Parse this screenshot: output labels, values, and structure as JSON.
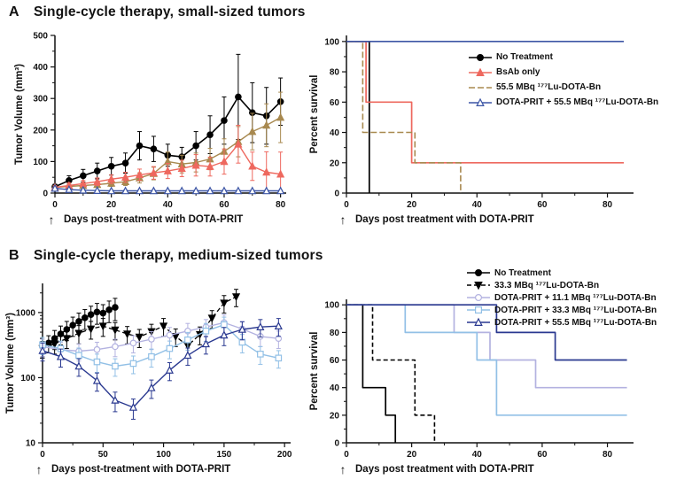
{
  "panels": {
    "a": {
      "label": "A",
      "title": "Single-cycle therapy, small-sized tumors"
    },
    "b": {
      "label": "B",
      "title": "Single-cycle therapy, medium-sized tumors"
    }
  },
  "colors": {
    "black": "#000000",
    "red": "#ee685e",
    "brown": "#a8894f",
    "blue": "#3c55a5",
    "lavender": "#b3b2e0",
    "lightblue": "#92c0e6",
    "navy": "#2a3990"
  },
  "chart_data": [
    {
      "id": "a-volume",
      "type": "line",
      "title": "",
      "xlabel": "Days post-treatment with DOTA-PRIT",
      "ylabel": "Tumor Volume (mm³)",
      "xlim": [
        0,
        82
      ],
      "xticks": [
        0,
        20,
        40,
        60,
        80
      ],
      "ylim": [
        0,
        500
      ],
      "yticks": [
        0,
        100,
        200,
        300,
        400,
        500
      ],
      "yscale": "linear",
      "grid": false,
      "treatment_arrow_day": 0,
      "series": [
        {
          "name": "No Treatment",
          "color": "#000000",
          "marker": "circle",
          "filled": true,
          "width": 1.6,
          "x": [
            0,
            5,
            10,
            15,
            20,
            25,
            30,
            35,
            40,
            45,
            50,
            55,
            60,
            65,
            70,
            75,
            80
          ],
          "y": [
            20,
            40,
            55,
            70,
            85,
            95,
            150,
            140,
            120,
            115,
            150,
            185,
            230,
            305,
            255,
            245,
            290
          ],
          "err": [
            8,
            15,
            20,
            25,
            28,
            32,
            45,
            40,
            35,
            30,
            45,
            60,
            75,
            135,
            95,
            90,
            75
          ]
        },
        {
          "name": "55.5 MBq ¹⁷⁷Lu-DOTA-Bn",
          "color": "#a8894f",
          "marker": "triangle",
          "filled": true,
          "width": 1.4,
          "x": [
            0,
            5,
            10,
            15,
            20,
            25,
            30,
            35,
            40,
            45,
            50,
            55,
            60,
            65,
            70,
            75,
            80
          ],
          "y": [
            18,
            21,
            24,
            27,
            31,
            36,
            48,
            62,
            100,
            92,
            97,
            108,
            132,
            163,
            195,
            215,
            240
          ],
          "err": [
            5,
            7,
            8,
            9,
            10,
            12,
            16,
            20,
            30,
            28,
            30,
            34,
            40,
            48,
            58,
            68,
            80
          ]
        },
        {
          "name": "BsAb only",
          "color": "#ee685e",
          "marker": "triangle",
          "filled": true,
          "width": 1.4,
          "x": [
            0,
            5,
            10,
            15,
            20,
            25,
            30,
            35,
            40,
            45,
            50,
            55,
            60,
            65,
            70,
            75,
            80
          ],
          "y": [
            18,
            24,
            30,
            36,
            44,
            50,
            58,
            64,
            70,
            78,
            88,
            84,
            100,
            155,
            85,
            66,
            60
          ],
          "err": [
            5,
            8,
            10,
            12,
            14,
            16,
            18,
            20,
            24,
            26,
            34,
            30,
            40,
            60,
            45,
            65,
            70
          ]
        },
        {
          "name": "DOTA-PRIT + 55.5 MBq ¹⁷⁷Lu-DOTA-Bn",
          "color": "#3c55a5",
          "marker": "triangle",
          "filled": false,
          "width": 1.4,
          "x": [
            0,
            5,
            10,
            15,
            20,
            25,
            30,
            35,
            40,
            45,
            50,
            55,
            60,
            65,
            70,
            75,
            80
          ],
          "y": [
            15,
            11,
            9,
            8,
            7,
            7,
            7,
            7,
            7,
            7,
            7,
            7,
            7,
            7,
            7,
            7,
            7
          ],
          "err": [
            4,
            3,
            3,
            2,
            2,
            2,
            2,
            2,
            2,
            2,
            2,
            2,
            2,
            2,
            2,
            2,
            2
          ]
        }
      ]
    },
    {
      "id": "a-survival",
      "type": "step",
      "title": "",
      "xlabel": "Days post treatment with DOTA-PRIT",
      "ylabel": "Percent survival",
      "xlim": [
        0,
        88
      ],
      "xticks": [
        0,
        20,
        40,
        60,
        80
      ],
      "ylim": [
        0,
        104
      ],
      "yticks": [
        0,
        20,
        40,
        60,
        80,
        100
      ],
      "yscale": "linear",
      "grid": false,
      "treatment_arrow_day": 0,
      "legend_position": "top-right",
      "series": [
        {
          "name": "No Treatment",
          "color": "#000000",
          "width": 1.7,
          "points": [
            [
              0,
              100
            ],
            [
              7,
              100
            ],
            [
              7,
              0
            ]
          ]
        },
        {
          "name": "BsAb only",
          "color": "#ee685e",
          "width": 1.7,
          "points": [
            [
              0,
              100
            ],
            [
              6,
              100
            ],
            [
              6,
              60
            ],
            [
              20,
              60
            ],
            [
              20,
              20
            ],
            [
              85,
              20
            ]
          ]
        },
        {
          "name": "55.5 MBq ¹⁷⁷Lu-DOTA-Bn",
          "color": "#a8894f",
          "width": 1.6,
          "dash": "7,3",
          "points": [
            [
              0,
              100
            ],
            [
              5,
              100
            ],
            [
              5,
              40
            ],
            [
              21,
              40
            ],
            [
              21,
              20
            ],
            [
              35,
              20
            ],
            [
              35,
              0
            ]
          ]
        },
        {
          "name": "DOTA-PRIT + 55.5 MBq ¹⁷⁷Lu-DOTA-Bn",
          "color": "#3c55a5",
          "width": 1.7,
          "points": [
            [
              0,
              100
            ],
            [
              85,
              100
            ]
          ]
        }
      ]
    },
    {
      "id": "b-volume",
      "type": "line",
      "title": "",
      "xlabel": "Days post-treatment with DOTA-PRIT",
      "ylabel": "Tumor Volume (mm³)",
      "xlim": [
        0,
        205
      ],
      "xticks": [
        0,
        50,
        100,
        150,
        200
      ],
      "ylim": [
        10,
        2800
      ],
      "yticks": [
        10,
        100,
        1000
      ],
      "yscale": "log",
      "grid": false,
      "treatment_arrow_day": 0,
      "series": [
        {
          "name": "No Treatment",
          "color": "#000000",
          "marker": "circle",
          "filled": true,
          "width": 1.5,
          "x": [
            0,
            5,
            10,
            15,
            20,
            25,
            30,
            35,
            40,
            45,
            50,
            55,
            60
          ],
          "y": [
            300,
            340,
            400,
            470,
            550,
            640,
            730,
            830,
            930,
            1020,
            980,
            1100,
            1200
          ],
          "err": [
            90,
            100,
            130,
            150,
            180,
            210,
            250,
            280,
            320,
            360,
            340,
            400,
            450
          ]
        },
        {
          "name": "33.3 MBq ¹⁷⁷Lu-DOTA-Bn",
          "color": "#000000",
          "marker": "triangle-down",
          "filled": true,
          "width": 1.3,
          "dash": "5,3",
          "x": [
            0,
            10,
            20,
            30,
            40,
            50,
            60,
            70,
            80,
            90,
            100,
            110,
            120,
            130,
            140,
            150,
            160
          ],
          "y": [
            280,
            330,
            400,
            480,
            560,
            620,
            540,
            470,
            420,
            510,
            620,
            430,
            310,
            460,
            820,
            1400,
            1750
          ],
          "err": [
            80,
            100,
            120,
            150,
            170,
            190,
            160,
            140,
            130,
            150,
            190,
            130,
            90,
            140,
            250,
            420,
            520
          ]
        },
        {
          "name": "DOTA-PRIT + 11.1 MBq ¹⁷⁷Lu-DOTA-Bn",
          "color": "#b3b2e0",
          "marker": "circle",
          "filled": false,
          "width": 1.4,
          "x": [
            0,
            15,
            30,
            45,
            60,
            75,
            90,
            105,
            120,
            135,
            150,
            165,
            180,
            195
          ],
          "y": [
            300,
            270,
            255,
            270,
            300,
            340,
            390,
            450,
            520,
            600,
            700,
            560,
            430,
            400
          ],
          "err": [
            90,
            80,
            75,
            80,
            90,
            100,
            120,
            140,
            160,
            180,
            220,
            170,
            130,
            120
          ]
        },
        {
          "name": "DOTA-PRIT + 33.3 MBq ¹⁷⁷Lu-DOTA-Bn",
          "color": "#92c0e6",
          "marker": "square",
          "filled": false,
          "width": 1.4,
          "x": [
            0,
            15,
            30,
            45,
            60,
            75,
            90,
            105,
            120,
            135,
            150,
            165,
            180,
            195
          ],
          "y": [
            320,
            280,
            220,
            175,
            150,
            165,
            210,
            280,
            380,
            520,
            650,
            350,
            230,
            200
          ],
          "err": [
            95,
            85,
            65,
            55,
            45,
            50,
            65,
            85,
            115,
            160,
            200,
            110,
            70,
            60
          ]
        },
        {
          "name": "DOTA-PRIT + 55.5 MBq ¹⁷⁷Lu-DOTA-Bn",
          "color": "#2a3990",
          "marker": "triangle",
          "filled": false,
          "width": 1.4,
          "x": [
            0,
            15,
            30,
            45,
            60,
            75,
            90,
            105,
            120,
            135,
            150,
            165,
            180,
            195
          ],
          "y": [
            260,
            210,
            150,
            90,
            45,
            35,
            70,
            130,
            220,
            330,
            450,
            550,
            600,
            620
          ],
          "err": [
            80,
            65,
            45,
            28,
            15,
            12,
            22,
            40,
            65,
            100,
            140,
            170,
            180,
            190
          ]
        }
      ]
    },
    {
      "id": "b-survival",
      "type": "step",
      "title": "",
      "xlabel": "Days post treatment with DOTA-PRIT",
      "ylabel": "Percent survival",
      "xlim": [
        0,
        88
      ],
      "xticks": [
        0,
        20,
        40,
        60,
        80
      ],
      "ylim": [
        0,
        104
      ],
      "yticks": [
        0,
        20,
        40,
        60,
        80,
        100
      ],
      "yscale": "linear",
      "grid": false,
      "treatment_arrow_day": 0,
      "legend_position": "top-right",
      "series": [
        {
          "name": "No Treatment",
          "color": "#000000",
          "width": 1.7,
          "points": [
            [
              0,
              100
            ],
            [
              5,
              100
            ],
            [
              5,
              40
            ],
            [
              12,
              40
            ],
            [
              12,
              20
            ],
            [
              15,
              20
            ],
            [
              15,
              0
            ]
          ]
        },
        {
          "name": "33.3 MBq ¹⁷⁷Lu-DOTA-Bn",
          "color": "#000000",
          "width": 1.6,
          "dash": "5,3",
          "points": [
            [
              0,
              100
            ],
            [
              8,
              100
            ],
            [
              8,
              60
            ],
            [
              21,
              60
            ],
            [
              21,
              20
            ],
            [
              27,
              20
            ],
            [
              27,
              0
            ]
          ]
        },
        {
          "name": "DOTA-PRIT + 11.1 MBq ¹⁷⁷Lu-DOTA-Bn",
          "color": "#b3b2e0",
          "width": 1.7,
          "points": [
            [
              0,
              100
            ],
            [
              33,
              100
            ],
            [
              33,
              80
            ],
            [
              44,
              80
            ],
            [
              44,
              60
            ],
            [
              58,
              60
            ],
            [
              58,
              40
            ],
            [
              86,
              40
            ]
          ]
        },
        {
          "name": "DOTA-PRIT + 33.3 MBq ¹⁷⁷Lu-DOTA-Bn",
          "color": "#92c0e6",
          "width": 1.7,
          "points": [
            [
              0,
              100
            ],
            [
              18,
              100
            ],
            [
              18,
              80
            ],
            [
              40,
              80
            ],
            [
              40,
              60
            ],
            [
              46,
              60
            ],
            [
              46,
              20
            ],
            [
              86,
              20
            ]
          ]
        },
        {
          "name": "DOTA-PRIT + 55.5 MBq ¹⁷⁷Lu-DOTA-Bn",
          "color": "#2a3990",
          "width": 1.7,
          "points": [
            [
              0,
              100
            ],
            [
              46,
              100
            ],
            [
              46,
              80
            ],
            [
              64,
              80
            ],
            [
              64,
              60
            ],
            [
              86,
              60
            ]
          ]
        }
      ]
    }
  ],
  "legends": {
    "a": {
      "item_height": 17,
      "items": [
        {
          "label": "No Treatment",
          "color": "#000000",
          "marker": "circle",
          "filled": true
        },
        {
          "label": "BsAb only",
          "color": "#ee685e",
          "marker": "triangle",
          "filled": true
        },
        {
          "label": "55.5 MBq ¹⁷⁷Lu-DOTA-Bn",
          "color": "#a8894f",
          "dash": "7,3"
        },
        {
          "label": "DOTA-PRIT + 55.5 MBq ¹⁷⁷Lu-DOTA-Bn",
          "color": "#3c55a5",
          "marker": "triangle",
          "filled": false
        }
      ]
    },
    "b": {
      "item_height": 14,
      "items": [
        {
          "label": "No Treatment",
          "color": "#000000",
          "marker": "circle",
          "filled": true
        },
        {
          "label": "33.3 MBq ¹⁷⁷Lu-DOTA-Bn",
          "color": "#000000",
          "marker": "triangle-down",
          "filled": true,
          "dash": "5,3"
        },
        {
          "label": "DOTA-PRIT + 11.1 MBq ¹⁷⁷Lu-DOTA-Bn",
          "color": "#b3b2e0",
          "marker": "circle",
          "filled": false
        },
        {
          "label": "DOTA-PRIT + 33.3 MBq ¹⁷⁷Lu-DOTA-Bn",
          "color": "#92c0e6",
          "marker": "square",
          "filled": false
        },
        {
          "label": "DOTA-PRIT + 55.5 MBq ¹⁷⁷Lu-DOTA-Bn",
          "color": "#2a3990",
          "marker": "triangle",
          "filled": false
        }
      ]
    }
  }
}
